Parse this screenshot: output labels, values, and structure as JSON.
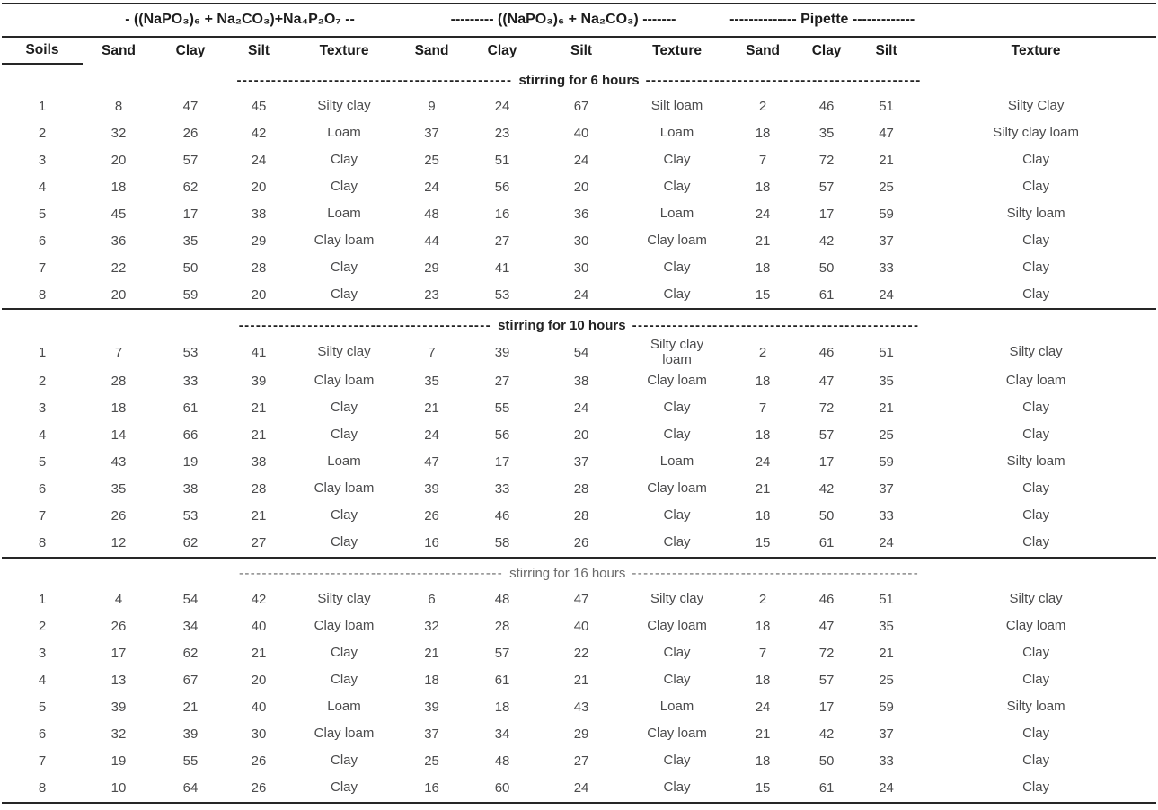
{
  "table": {
    "spanners": [
      {
        "label": "- ((NaPO₃)₆ + Na₂CO₃)+Na₄P₂O₇ --"
      },
      {
        "label": "--------- ((NaPO₃)₆ + Na₂CO₃) -------"
      },
      {
        "label": "-------------- Pipette --------------"
      }
    ],
    "columns": [
      "Soils",
      "Sand",
      "Clay",
      "Silt",
      "Texture",
      "Sand",
      "Clay",
      "Silt",
      "Texture",
      "Sand",
      "Clay",
      "Silt",
      "Texture"
    ],
    "sections": [
      {
        "title": "stirring for 6 hours",
        "dash_left": "------------------------------------------------",
        "dash_right": "------------------------------------------------",
        "bold": true,
        "rule_above": false,
        "rows": [
          [
            "1",
            8,
            47,
            45,
            "Silty clay",
            9,
            24,
            67,
            "Silt loam",
            2,
            46,
            51,
            "Silty Clay"
          ],
          [
            "2",
            32,
            26,
            42,
            "Loam",
            37,
            23,
            40,
            "Loam",
            18,
            35,
            47,
            "Silty clay loam"
          ],
          [
            "3",
            20,
            57,
            24,
            "Clay",
            25,
            51,
            24,
            "Clay",
            7,
            72,
            21,
            "Clay"
          ],
          [
            "4",
            18,
            62,
            20,
            "Clay",
            24,
            56,
            20,
            "Clay",
            18,
            57,
            25,
            "Clay"
          ],
          [
            "5",
            45,
            17,
            38,
            "Loam",
            48,
            16,
            36,
            "Loam",
            24,
            17,
            59,
            "Silty loam"
          ],
          [
            "6",
            36,
            35,
            29,
            "Clay loam",
            44,
            27,
            30,
            "Clay loam",
            21,
            42,
            37,
            "Clay"
          ],
          [
            "7",
            22,
            50,
            28,
            "Clay",
            29,
            41,
            30,
            "Clay",
            18,
            50,
            33,
            "Clay"
          ],
          [
            "8",
            20,
            59,
            20,
            "Clay",
            23,
            53,
            24,
            "Clay",
            15,
            61,
            24,
            "Clay"
          ]
        ]
      },
      {
        "title": "stirring for 10 hours",
        "dash_left": "--------------------------------------------",
        "dash_right": "--------------------------------------------------",
        "bold": true,
        "rule_above": true,
        "rows": [
          [
            "1",
            7,
            53,
            41,
            "Silty clay",
            7,
            39,
            54,
            "Silty clay\nloam",
            2,
            46,
            51,
            "Silty clay"
          ],
          [
            "2",
            28,
            33,
            39,
            "Clay loam",
            35,
            27,
            38,
            "Clay loam",
            18,
            47,
            35,
            "Clay loam"
          ],
          [
            "3",
            18,
            61,
            21,
            "Clay",
            21,
            55,
            24,
            "Clay",
            7,
            72,
            21,
            "Clay"
          ],
          [
            "4",
            14,
            66,
            21,
            "Clay",
            24,
            56,
            20,
            "Clay",
            18,
            57,
            25,
            "Clay"
          ],
          [
            "5",
            43,
            19,
            38,
            "Loam",
            47,
            17,
            37,
            "Loam",
            24,
            17,
            59,
            "Silty loam"
          ],
          [
            "6",
            35,
            38,
            28,
            "Clay loam",
            39,
            33,
            28,
            "Clay loam",
            21,
            42,
            37,
            "Clay"
          ],
          [
            "7",
            26,
            53,
            21,
            "Clay",
            26,
            46,
            28,
            "Clay",
            18,
            50,
            33,
            "Clay"
          ],
          [
            "8",
            12,
            62,
            27,
            "Clay",
            16,
            58,
            26,
            "Clay",
            15,
            61,
            24,
            "Clay"
          ]
        ]
      },
      {
        "title": "stirring for 16 hours",
        "dash_left": "----------------------------------------------",
        "dash_right": "--------------------------------------------------",
        "bold": false,
        "rule_above": true,
        "rows": [
          [
            "1",
            4,
            54,
            42,
            "Silty clay",
            6,
            48,
            47,
            "Silty clay",
            2,
            46,
            51,
            "Silty clay"
          ],
          [
            "2",
            26,
            34,
            40,
            "Clay loam",
            32,
            28,
            40,
            "Clay loam",
            18,
            47,
            35,
            "Clay loam"
          ],
          [
            "3",
            17,
            62,
            21,
            "Clay",
            21,
            57,
            22,
            "Clay",
            7,
            72,
            21,
            "Clay"
          ],
          [
            "4",
            13,
            67,
            20,
            "Clay",
            18,
            61,
            21,
            "Clay",
            18,
            57,
            25,
            "Clay"
          ],
          [
            "5",
            39,
            21,
            40,
            "Loam",
            39,
            18,
            43,
            "Loam",
            24,
            17,
            59,
            "Silty loam"
          ],
          [
            "6",
            32,
            39,
            30,
            "Clay loam",
            37,
            34,
            29,
            "Clay loam",
            21,
            42,
            37,
            "Clay"
          ],
          [
            "7",
            19,
            55,
            26,
            "Clay",
            25,
            48,
            27,
            "Clay",
            18,
            50,
            33,
            "Clay"
          ],
          [
            "8",
            10,
            64,
            26,
            "Clay",
            16,
            60,
            24,
            "Clay",
            15,
            61,
            24,
            "Clay"
          ]
        ]
      }
    ],
    "colors": {
      "rule": "#262626",
      "header_text": "#1c1c1c",
      "body_text": "#4b4b4c",
      "muted_section_text": "#6a6a6a",
      "background": "#ffffff"
    }
  }
}
